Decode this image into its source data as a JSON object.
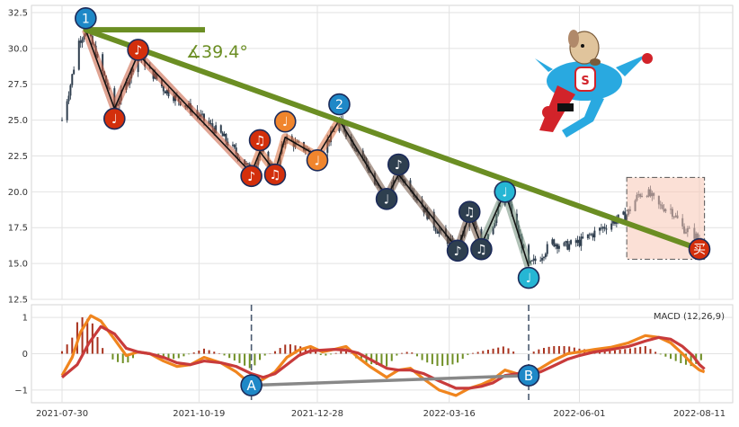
{
  "chart_data": {
    "type": "candlestick",
    "dates": [
      "2021-07-30",
      "2021-10-19",
      "2021-12-28",
      "2022-03-16",
      "2022-06-01",
      "2022-08-11"
    ],
    "price": {
      "ylim": [
        12.5,
        33.0
      ],
      "yticks": [
        "12.5",
        "15.0",
        "17.5",
        "20.0",
        "22.5",
        "25.0",
        "27.5",
        "30.0",
        "32.5"
      ],
      "close_trace": [
        [
          "2021-07-30",
          25.0
        ],
        [
          "2021-08-04",
          27.5
        ],
        [
          "2021-08-09",
          30.5
        ],
        [
          "2021-08-13",
          31.3
        ],
        [
          "2021-08-18",
          30.0
        ],
        [
          "2021-08-24",
          28.0
        ],
        [
          "2021-08-30",
          25.8
        ],
        [
          "2021-09-06",
          27.5
        ],
        [
          "2021-09-13",
          29.6
        ],
        [
          "2021-09-20",
          28.5
        ],
        [
          "2021-09-28",
          27.2
        ],
        [
          "2021-10-06",
          26.5
        ],
        [
          "2021-10-14",
          25.8
        ],
        [
          "2021-10-22",
          25.0
        ],
        [
          "2021-11-01",
          24.0
        ],
        [
          "2021-11-08",
          23.0
        ],
        [
          "2021-11-15",
          22.0
        ],
        [
          "2021-11-19",
          21.3
        ],
        [
          "2021-11-24",
          22.8
        ],
        [
          "2021-11-29",
          22.0
        ],
        [
          "2021-12-03",
          21.4
        ],
        [
          "2021-12-09",
          23.8
        ],
        [
          "2021-12-15",
          23.3
        ],
        [
          "2021-12-21",
          23.0
        ],
        [
          "2021-12-28",
          22.5
        ],
        [
          "2022-01-04",
          23.7
        ],
        [
          "2022-01-10",
          25.0
        ],
        [
          "2022-01-17",
          23.5
        ],
        [
          "2022-01-24",
          22.5
        ],
        [
          "2022-01-31",
          20.5
        ],
        [
          "2022-02-07",
          19.6
        ],
        [
          "2022-02-14",
          21.2
        ],
        [
          "2022-02-21",
          20.4
        ],
        [
          "2022-02-28",
          19.0
        ],
        [
          "2022-03-08",
          17.5
        ],
        [
          "2022-03-16",
          16.5
        ],
        [
          "2022-03-21",
          16.0
        ],
        [
          "2022-03-28",
          18.4
        ],
        [
          "2022-04-04",
          16.3
        ],
        [
          "2022-04-11",
          17.8
        ],
        [
          "2022-04-18",
          20.0
        ],
        [
          "2022-04-25",
          17.5
        ],
        [
          "2022-05-02",
          14.8
        ],
        [
          "2022-05-09",
          15.5
        ],
        [
          "2022-05-16",
          16.5
        ],
        [
          "2022-05-23",
          16.2
        ],
        [
          "2022-06-01",
          16.5
        ],
        [
          "2022-06-08",
          17.0
        ],
        [
          "2022-06-15",
          17.5
        ],
        [
          "2022-06-22",
          18.0
        ],
        [
          "2022-06-29",
          18.4
        ],
        [
          "2022-07-06",
          19.8
        ],
        [
          "2022-07-11",
          20.0
        ],
        [
          "2022-07-18",
          19.0
        ],
        [
          "2022-07-25",
          18.8
        ],
        [
          "2022-08-01",
          17.5
        ],
        [
          "2022-08-08",
          17.0
        ],
        [
          "2022-08-11",
          16.6
        ],
        [
          "2022-08-16",
          16.2
        ]
      ]
    },
    "trendline": {
      "from": [
        "2021-08-13",
        31.3
      ],
      "to": [
        "2022-08-11",
        16.0
      ],
      "angle_label": "∡39.4°"
    },
    "markers": [
      {
        "label": "1",
        "date": "2021-08-13",
        "value": 32.1,
        "color": "#1e88c7"
      },
      {
        "label": "♩",
        "date": "2021-08-30",
        "value": 25.1,
        "color": "#d32f0c"
      },
      {
        "label": "♪",
        "date": "2021-09-13",
        "value": 29.9,
        "color": "#d32f0c"
      },
      {
        "label": "♪",
        "date": "2021-11-19",
        "value": 21.1,
        "color": "#d32f0c"
      },
      {
        "label": "♫",
        "date": "2021-11-24",
        "value": 23.6,
        "color": "#d32f0c"
      },
      {
        "label": "♫",
        "date": "2021-12-03",
        "value": 21.2,
        "color": "#d32f0c"
      },
      {
        "label": "♩",
        "date": "2021-12-09",
        "value": 24.9,
        "color": "#f0852d"
      },
      {
        "label": "♩",
        "date": "2021-12-28",
        "value": 22.2,
        "color": "#f0852d"
      },
      {
        "label": "2",
        "date": "2022-01-10",
        "value": 26.1,
        "color": "#1e88c7"
      },
      {
        "label": "♩",
        "date": "2022-02-07",
        "value": 19.5,
        "color": "#2e3f4f"
      },
      {
        "label": "♪",
        "date": "2022-02-14",
        "value": 21.9,
        "color": "#2e3f4f"
      },
      {
        "label": "♪",
        "date": "2022-03-21",
        "value": 15.9,
        "color": "#2e3f4f"
      },
      {
        "label": "♫",
        "date": "2022-03-28",
        "value": 18.6,
        "color": "#2e3f4f"
      },
      {
        "label": "♫",
        "date": "2022-04-04",
        "value": 16.0,
        "color": "#2e3f4f"
      },
      {
        "label": "♩",
        "date": "2022-04-18",
        "value": 20.0,
        "color": "#26b6d4"
      },
      {
        "label": "♩",
        "date": "2022-05-02",
        "value": 14.0,
        "color": "#26b6d4"
      },
      {
        "label": "买",
        "date": "2022-08-11",
        "value": 16.0,
        "color": "#d32f0c"
      }
    ],
    "zigzag_segments": [
      {
        "color": "#c65a3a",
        "points": [
          [
            "2021-08-13",
            31.3
          ],
          [
            "2021-08-30",
            25.8
          ],
          [
            "2021-09-13",
            29.6
          ],
          [
            "2021-11-19",
            21.3
          ]
        ]
      },
      {
        "color": "#d76b3b",
        "points": [
          [
            "2021-11-19",
            21.3
          ],
          [
            "2021-11-24",
            22.8
          ],
          [
            "2021-12-03",
            21.4
          ],
          [
            "2021-12-09",
            23.8
          ],
          [
            "2021-12-28",
            22.5
          ],
          [
            "2022-01-10",
            25.0
          ]
        ]
      },
      {
        "color": "#6b4c3a",
        "points": [
          [
            "2022-01-10",
            25.0
          ],
          [
            "2022-02-07",
            19.6
          ],
          [
            "2022-02-14",
            21.2
          ],
          [
            "2022-03-21",
            16.0
          ],
          [
            "2022-03-28",
            18.4
          ],
          [
            "2022-04-04",
            16.3
          ]
        ]
      },
      {
        "color": "#6f8e7a",
        "points": [
          [
            "2022-04-04",
            16.3
          ],
          [
            "2022-04-18",
            20.0
          ],
          [
            "2022-05-02",
            14.8
          ]
        ]
      }
    ],
    "highlight_box": {
      "x": [
        "2022-06-29",
        "2022-08-14"
      ],
      "y": [
        15.3,
        21.0
      ]
    },
    "macd": {
      "legend": "MACD (12,26,9)",
      "ylim": [
        -1.35,
        1.35
      ],
      "yticks": [
        "−1",
        "0",
        "1"
      ],
      "macd_line": [
        [
          "2021-07-30",
          -0.6
        ],
        [
          "2021-08-05",
          -0.1
        ],
        [
          "2021-08-10",
          0.6
        ],
        [
          "2021-08-16",
          1.05
        ],
        [
          "2021-08-22",
          0.9
        ],
        [
          "2021-08-30",
          0.4
        ],
        [
          "2021-09-06",
          -0.05
        ],
        [
          "2021-09-13",
          0.05
        ],
        [
          "2021-09-20",
          0.0
        ],
        [
          "2021-09-28",
          -0.2
        ],
        [
          "2021-10-06",
          -0.35
        ],
        [
          "2021-10-14",
          -0.3
        ],
        [
          "2021-10-22",
          -0.1
        ],
        [
          "2021-11-01",
          -0.25
        ],
        [
          "2021-11-10",
          -0.5
        ],
        [
          "2021-11-19",
          -0.85
        ],
        [
          "2021-11-26",
          -0.7
        ],
        [
          "2021-12-03",
          -0.5
        ],
        [
          "2021-12-10",
          -0.1
        ],
        [
          "2021-12-17",
          0.1
        ],
        [
          "2021-12-24",
          0.2
        ],
        [
          "2021-12-31",
          0.05
        ],
        [
          "2022-01-07",
          0.12
        ],
        [
          "2022-01-14",
          0.2
        ],
        [
          "2022-01-21",
          -0.1
        ],
        [
          "2022-01-28",
          -0.35
        ],
        [
          "2022-02-07",
          -0.65
        ],
        [
          "2022-02-14",
          -0.45
        ],
        [
          "2022-02-21",
          -0.4
        ],
        [
          "2022-03-01",
          -0.7
        ],
        [
          "2022-03-10",
          -1.0
        ],
        [
          "2022-03-20",
          -1.15
        ],
        [
          "2022-03-28",
          -0.95
        ],
        [
          "2022-04-04",
          -0.85
        ],
        [
          "2022-04-11",
          -0.7
        ],
        [
          "2022-04-18",
          -0.45
        ],
        [
          "2022-04-25",
          -0.55
        ],
        [
          "2022-05-02",
          -0.55
        ],
        [
          "2022-05-09",
          -0.4
        ],
        [
          "2022-05-16",
          -0.2
        ],
        [
          "2022-05-25",
          0.0
        ],
        [
          "2022-06-01",
          0.05
        ],
        [
          "2022-06-10",
          0.12
        ],
        [
          "2022-06-20",
          0.18
        ],
        [
          "2022-06-30",
          0.3
        ],
        [
          "2022-07-10",
          0.5
        ],
        [
          "2022-07-18",
          0.45
        ],
        [
          "2022-07-25",
          0.3
        ],
        [
          "2022-08-01",
          0.0
        ],
        [
          "2022-08-07",
          -0.3
        ],
        [
          "2022-08-11",
          -0.45
        ],
        [
          "2022-08-14",
          -0.5
        ]
      ],
      "signal_line": [
        [
          "2021-07-30",
          -0.65
        ],
        [
          "2021-08-08",
          -0.3
        ],
        [
          "2021-08-15",
          0.3
        ],
        [
          "2021-08-22",
          0.75
        ],
        [
          "2021-08-30",
          0.55
        ],
        [
          "2021-09-06",
          0.15
        ],
        [
          "2021-09-13",
          0.05
        ],
        [
          "2021-09-20",
          0.0
        ],
        [
          "2021-09-28",
          -0.1
        ],
        [
          "2021-10-06",
          -0.25
        ],
        [
          "2021-10-14",
          -0.3
        ],
        [
          "2021-10-22",
          -0.2
        ],
        [
          "2021-11-01",
          -0.25
        ],
        [
          "2021-11-10",
          -0.35
        ],
        [
          "2021-11-19",
          -0.55
        ],
        [
          "2021-11-26",
          -0.65
        ],
        [
          "2021-12-03",
          -0.55
        ],
        [
          "2021-12-10",
          -0.3
        ],
        [
          "2021-12-17",
          -0.05
        ],
        [
          "2021-12-24",
          0.08
        ],
        [
          "2021-12-31",
          0.1
        ],
        [
          "2022-01-07",
          0.12
        ],
        [
          "2022-01-14",
          0.1
        ],
        [
          "2022-01-21",
          0.02
        ],
        [
          "2022-01-28",
          -0.15
        ],
        [
          "2022-02-07",
          -0.4
        ],
        [
          "2022-02-14",
          -0.45
        ],
        [
          "2022-02-21",
          -0.45
        ],
        [
          "2022-03-01",
          -0.55
        ],
        [
          "2022-03-10",
          -0.75
        ],
        [
          "2022-03-20",
          -0.95
        ],
        [
          "2022-03-28",
          -0.95
        ],
        [
          "2022-04-04",
          -0.9
        ],
        [
          "2022-04-11",
          -0.8
        ],
        [
          "2022-04-18",
          -0.6
        ],
        [
          "2022-04-25",
          -0.55
        ],
        [
          "2022-05-02",
          -0.55
        ],
        [
          "2022-05-09",
          -0.5
        ],
        [
          "2022-05-16",
          -0.35
        ],
        [
          "2022-05-25",
          -0.15
        ],
        [
          "2022-06-01",
          -0.05
        ],
        [
          "2022-06-10",
          0.05
        ],
        [
          "2022-06-20",
          0.12
        ],
        [
          "2022-06-30",
          0.2
        ],
        [
          "2022-07-10",
          0.35
        ],
        [
          "2022-07-18",
          0.45
        ],
        [
          "2022-07-25",
          0.4
        ],
        [
          "2022-08-01",
          0.2
        ],
        [
          "2022-08-07",
          -0.05
        ],
        [
          "2022-08-11",
          -0.3
        ],
        [
          "2022-08-14",
          -0.42
        ]
      ],
      "histogram_color_pos": "#a8321e",
      "histogram_color_neg": "#6f8f25",
      "divergence": [
        {
          "label": "A",
          "date": "2021-11-19",
          "value": -0.87,
          "color": "#1e88c7"
        },
        {
          "label": "B",
          "date": "2022-05-02",
          "value": -0.6,
          "color": "#1e88c7"
        }
      ],
      "vlines": [
        "2021-11-19",
        "2022-05-02"
      ]
    },
    "colors": {
      "candle": "#2f3e4e",
      "trend": "#6b8e23",
      "macd": "#f0851e",
      "signal": "#c83b3b",
      "box_fill": "#f8c7b5",
      "box_edge": "#555555"
    }
  },
  "icon": "superhero-dog-icon"
}
